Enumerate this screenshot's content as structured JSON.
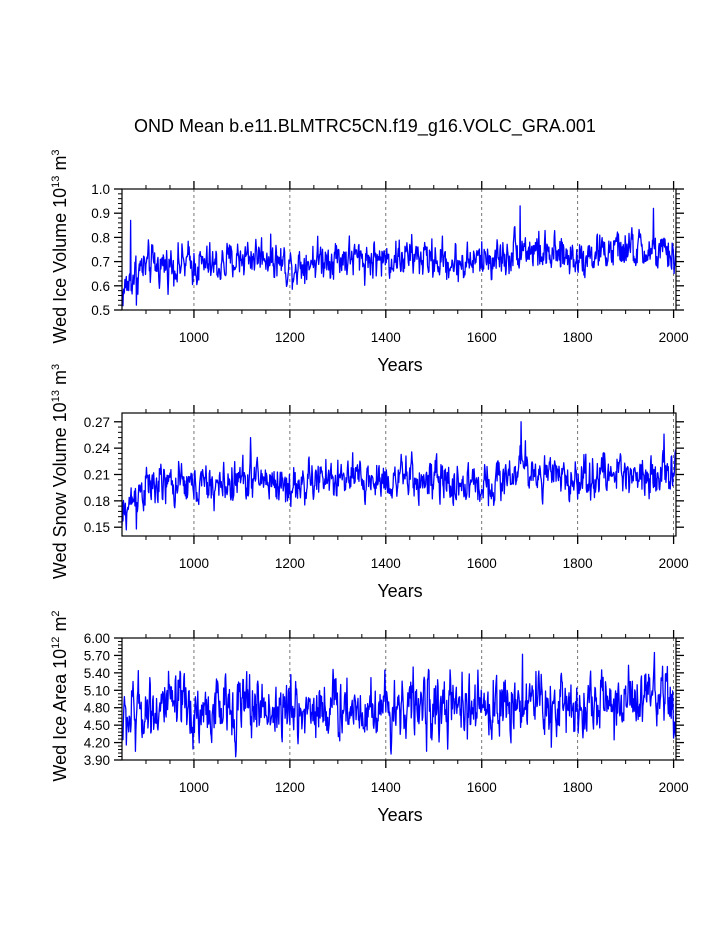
{
  "title": "OND Mean b.e11.BLMTRC5CN.f19_g16.VOLC_GRA.001",
  "colors": {
    "series": "#0000ff",
    "axis": "#000000",
    "grid": "#555555"
  },
  "chart_data": [
    {
      "type": "line",
      "id": "ice-volume",
      "ylabel_parts": [
        "Wed Ice Volume 10",
        "13",
        " m",
        "3"
      ],
      "xlabel": "Years",
      "xlim": [
        850,
        2005
      ],
      "ylim": [
        0.5,
        1.0
      ],
      "xticks": [
        1000,
        1200,
        1400,
        1600,
        1800,
        2000
      ],
      "xtick_labels": [
        "1000",
        "1200",
        "1400",
        "1600",
        "1800",
        "2000"
      ],
      "yticks": [
        0.5,
        0.6,
        0.7,
        0.8,
        0.9,
        1.0
      ],
      "ytick_labels": [
        "0.5",
        "0.6",
        "0.7",
        "0.8",
        "0.9",
        "1.0"
      ],
      "vertical_grid": [
        1000,
        1200,
        1400,
        1600,
        1800,
        2000
      ],
      "series_profile": [
        [
          850,
          0.57
        ],
        [
          880,
          0.66
        ],
        [
          900,
          0.68
        ],
        [
          950,
          0.69
        ],
        [
          1000,
          0.69
        ],
        [
          1050,
          0.68
        ],
        [
          1100,
          0.72
        ],
        [
          1150,
          0.73
        ],
        [
          1200,
          0.68
        ],
        [
          1250,
          0.71
        ],
        [
          1300,
          0.72
        ],
        [
          1350,
          0.71
        ],
        [
          1400,
          0.71
        ],
        [
          1450,
          0.72
        ],
        [
          1500,
          0.71
        ],
        [
          1550,
          0.69
        ],
        [
          1600,
          0.71
        ],
        [
          1650,
          0.72
        ],
        [
          1680,
          0.77
        ],
        [
          1700,
          0.75
        ],
        [
          1750,
          0.72
        ],
        [
          1800,
          0.72
        ],
        [
          1850,
          0.74
        ],
        [
          1900,
          0.75
        ],
        [
          1950,
          0.74
        ],
        [
          2005,
          0.72
        ]
      ],
      "series_amplitude": 0.045,
      "extremes": [
        [
          850,
          0.56
        ],
        [
          868,
          0.87
        ],
        [
          880,
          0.52
        ],
        [
          1680,
          0.93
        ],
        [
          1958,
          0.92
        ]
      ]
    },
    {
      "type": "line",
      "id": "snow-volume",
      "ylabel_parts": [
        "Wed Snow Volume 10",
        "13",
        " m",
        "3"
      ],
      "xlabel": "Years",
      "xlim": [
        850,
        2005
      ],
      "ylim": [
        0.14,
        0.28
      ],
      "xticks": [
        1000,
        1200,
        1400,
        1600,
        1800,
        2000
      ],
      "xtick_labels": [
        "1000",
        "1200",
        "1400",
        "1600",
        "1800",
        "2000"
      ],
      "yticks": [
        0.15,
        0.18,
        0.21,
        0.24,
        0.27
      ],
      "ytick_labels": [
        "0.15",
        "0.18",
        "0.21",
        "0.24",
        "0.27"
      ],
      "vertical_grid": [
        1000,
        1200,
        1400,
        1600,
        1800,
        2000
      ],
      "series_profile": [
        [
          850,
          0.16
        ],
        [
          880,
          0.19
        ],
        [
          900,
          0.195
        ],
        [
          950,
          0.198
        ],
        [
          1000,
          0.198
        ],
        [
          1050,
          0.196
        ],
        [
          1100,
          0.205
        ],
        [
          1150,
          0.205
        ],
        [
          1200,
          0.195
        ],
        [
          1250,
          0.203
        ],
        [
          1300,
          0.205
        ],
        [
          1350,
          0.203
        ],
        [
          1400,
          0.204
        ],
        [
          1450,
          0.205
        ],
        [
          1500,
          0.202
        ],
        [
          1550,
          0.198
        ],
        [
          1600,
          0.2
        ],
        [
          1650,
          0.205
        ],
        [
          1680,
          0.22
        ],
        [
          1700,
          0.215
        ],
        [
          1750,
          0.205
        ],
        [
          1800,
          0.205
        ],
        [
          1850,
          0.21
        ],
        [
          1900,
          0.212
        ],
        [
          1950,
          0.212
        ],
        [
          2005,
          0.21
        ]
      ],
      "series_amplitude": 0.013,
      "extremes": [
        [
          850,
          0.152
        ],
        [
          880,
          0.148
        ],
        [
          1118,
          0.252
        ],
        [
          1682,
          0.27
        ],
        [
          1980,
          0.256
        ]
      ]
    },
    {
      "type": "line",
      "id": "ice-area",
      "ylabel_parts": [
        "Wed Ice Area 10",
        "12",
        " m",
        "2"
      ],
      "xlabel": "Years",
      "xlim": [
        850,
        2005
      ],
      "ylim": [
        3.9,
        6.0
      ],
      "xticks": [
        1000,
        1200,
        1400,
        1600,
        1800,
        2000
      ],
      "xtick_labels": [
        "1000",
        "1200",
        "1400",
        "1600",
        "1800",
        "2000"
      ],
      "yticks": [
        3.9,
        4.2,
        4.5,
        4.8,
        5.1,
        5.4,
        5.7,
        6.0
      ],
      "ytick_labels": [
        "3.90",
        "4.20",
        "4.50",
        "4.80",
        "5.10",
        "5.40",
        "5.70",
        "6.00"
      ],
      "vertical_grid": [
        1000,
        1200,
        1400,
        1600,
        1800,
        2000
      ],
      "series_profile": [
        [
          850,
          4.5
        ],
        [
          880,
          4.75
        ],
        [
          900,
          4.8
        ],
        [
          950,
          4.82
        ],
        [
          1000,
          4.7
        ],
        [
          1050,
          4.75
        ],
        [
          1100,
          4.85
        ],
        [
          1150,
          4.8
        ],
        [
          1200,
          4.72
        ],
        [
          1250,
          4.8
        ],
        [
          1300,
          4.82
        ],
        [
          1350,
          4.8
        ],
        [
          1400,
          4.82
        ],
        [
          1450,
          4.85
        ],
        [
          1500,
          4.8
        ],
        [
          1550,
          4.75
        ],
        [
          1600,
          4.78
        ],
        [
          1650,
          4.85
        ],
        [
          1680,
          4.95
        ],
        [
          1700,
          4.92
        ],
        [
          1750,
          4.85
        ],
        [
          1800,
          4.85
        ],
        [
          1850,
          4.88
        ],
        [
          1900,
          4.9
        ],
        [
          1950,
          4.9
        ],
        [
          2005,
          4.82
        ]
      ],
      "series_amplitude": 0.3,
      "extremes": [
        [
          850,
          4.3
        ],
        [
          878,
          4.05
        ],
        [
          1685,
          5.72
        ],
        [
          1745,
          4.12
        ],
        [
          1960,
          5.75
        ]
      ]
    }
  ]
}
